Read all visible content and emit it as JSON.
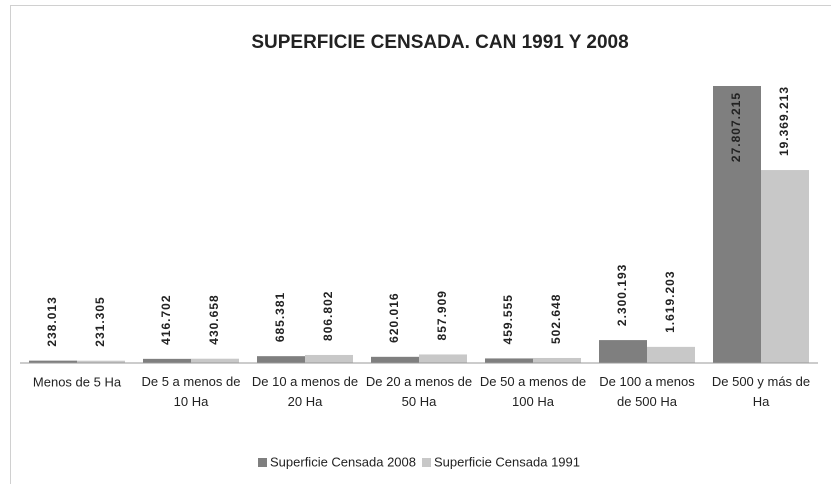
{
  "chart_data": {
    "type": "bar",
    "title": "SUPERFICIE CENSADA. CAN 1991 Y 2008",
    "categories": [
      "Menos de 5 Ha",
      "De 5 a menos de 10 Ha",
      "De 10 a menos de 20 Ha",
      "De 20 a menos de 50 Ha",
      "De 50 a menos de 100 Ha",
      "De 100 a menos de 500 Ha",
      "De 500 y más de Ha"
    ],
    "series": [
      {
        "name": "Superficie Censada 2008",
        "color": "#7f7f7f",
        "values": [
          238013,
          416702,
          685381,
          620016,
          459555,
          2300193,
          27807215
        ],
        "value_labels": [
          "238.013",
          "416.702",
          "685.381",
          "620.016",
          "459.555",
          "2.300.193",
          "27.807.215"
        ]
      },
      {
        "name": "Superficie Censada 1991",
        "color": "#c8c8c8",
        "values": [
          231305,
          430658,
          806802,
          857909,
          502648,
          1619203,
          19369213
        ],
        "value_labels": [
          "231.305",
          "430.658",
          "806.802",
          "857.909",
          "502.648",
          "1.619.203",
          "19.369.213"
        ]
      }
    ],
    "legend": "bottom"
  }
}
